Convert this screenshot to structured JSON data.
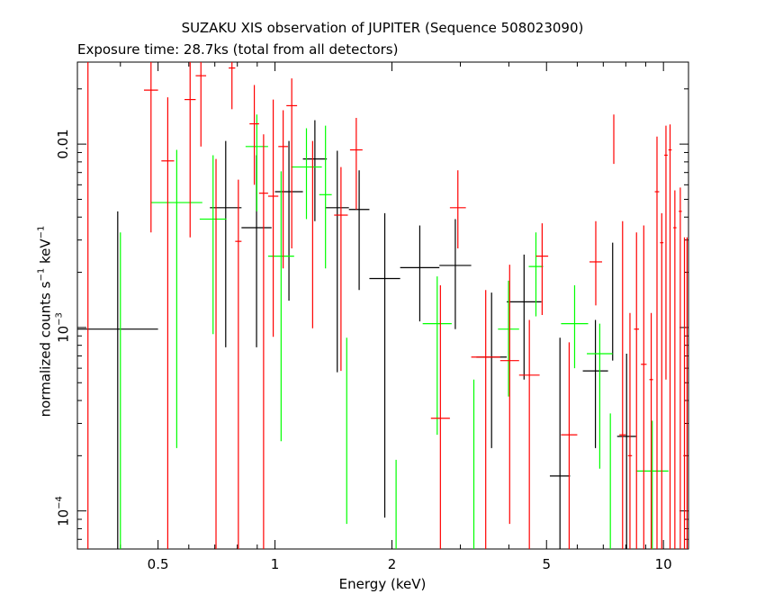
{
  "chart_data": {
    "type": "scatter",
    "title": "SUZAKU XIS observation of JUPITER (Sequence 508023090)",
    "subtitle": "Exposure time: 28.7ks (total from all detectors)",
    "xlabel": "Energy (keV)",
    "ylabel": {
      "prefix": "normalized counts s",
      "exp1": "−1",
      "mid": " keV",
      "exp2": "−1"
    },
    "x_scale": "log",
    "y_scale": "log",
    "xlim": [
      0.31,
      11.6
    ],
    "ylim": [
      6.2e-05,
      0.028
    ],
    "x_ticks": [
      {
        "v": 0.5,
        "label": "0.5"
      },
      {
        "v": 1,
        "label": "1"
      },
      {
        "v": 2,
        "label": "2"
      },
      {
        "v": 5,
        "label": "5"
      },
      {
        "v": 10,
        "label": "10"
      }
    ],
    "y_ticks": [
      {
        "v": 0.01,
        "label": "0.01"
      },
      {
        "v": 0.001,
        "label": "10",
        "exp": "−3"
      },
      {
        "v": 0.0001,
        "label": "10",
        "exp": "−4"
      }
    ],
    "legend": "none",
    "series": [
      {
        "color": "#000000",
        "points": [
          {
            "x0": 0.31,
            "x1": 0.5,
            "y": 0.00098,
            "ylo": 6.2e-05,
            "yhi": 0.0043
          },
          {
            "x0": 0.68,
            "x1": 0.82,
            "y": 0.0045,
            "ylo": 0.00078,
            "yhi": 0.0104
          },
          {
            "x0": 0.82,
            "x1": 0.98,
            "y": 0.0035,
            "ylo": 0.00078,
            "yhi": 0.0087
          },
          {
            "x0": 1.0,
            "x1": 1.18,
            "y": 0.0055,
            "ylo": 0.0014,
            "yhi": 0.0104
          },
          {
            "x0": 1.18,
            "x1": 1.36,
            "y": 0.0083,
            "ylo": 0.0038,
            "yhi": 0.0135
          },
          {
            "x0": 1.35,
            "x1": 1.55,
            "y": 0.0045,
            "ylo": 0.00057,
            "yhi": 0.0092
          },
          {
            "x0": 1.55,
            "x1": 1.75,
            "y": 0.0044,
            "ylo": 0.0016,
            "yhi": 0.0072
          },
          {
            "x0": 1.75,
            "x1": 2.1,
            "y": 0.00185,
            "ylo": 9.2e-05,
            "yhi": 0.0042
          },
          {
            "x0": 2.1,
            "x1": 2.65,
            "y": 0.00212,
            "ylo": 0.00108,
            "yhi": 0.0036
          },
          {
            "x0": 2.65,
            "x1": 3.2,
            "y": 0.00218,
            "ylo": 0.00098,
            "yhi": 0.0039
          },
          {
            "x0": 3.3,
            "x1": 3.95,
            "y": 0.00069,
            "ylo": 0.00022,
            "yhi": 0.00155
          },
          {
            "x0": 3.95,
            "x1": 4.85,
            "y": 0.00138,
            "ylo": 0.00052,
            "yhi": 0.0025
          },
          {
            "x0": 5.1,
            "x1": 5.75,
            "y": 0.000155,
            "ylo": 6.2e-05,
            "yhi": 0.00088
          },
          {
            "x0": 6.2,
            "x1": 7.2,
            "y": 0.00058,
            "ylo": 0.00022,
            "yhi": 0.0011
          },
          {
            "x0": 7.4,
            "x1": 7.4,
            "y": 0.00156,
            "ylo": 0.00066,
            "yhi": 0.0029
          },
          {
            "x0": 7.6,
            "x1": 8.5,
            "y": 0.000255,
            "ylo": 6.2e-05,
            "yhi": 0.00072
          }
        ]
      },
      {
        "color": "#00ff00",
        "points": [
          {
            "x0": 0.4,
            "x1": 0.4,
            "y": 0.00033,
            "ylo": 6.2e-05,
            "yhi": 0.0033
          },
          {
            "x0": 0.48,
            "x1": 0.65,
            "y": 0.0048,
            "ylo": 0.00022,
            "yhi": 0.0093
          },
          {
            "x0": 0.64,
            "x1": 0.75,
            "y": 0.0039,
            "ylo": 0.00092,
            "yhi": 0.0087
          },
          {
            "x0": 0.84,
            "x1": 0.96,
            "y": 0.0097,
            "ylo": 0.0043,
            "yhi": 0.0145
          },
          {
            "x0": 0.96,
            "x1": 1.12,
            "y": 0.00245,
            "ylo": 0.00024,
            "yhi": 0.0071
          },
          {
            "x0": 1.1,
            "x1": 1.32,
            "y": 0.0075,
            "ylo": 0.0039,
            "yhi": 0.0122
          },
          {
            "x0": 1.3,
            "x1": 1.4,
            "y": 0.0053,
            "ylo": 0.0021,
            "yhi": 0.0126
          },
          {
            "x0": 1.53,
            "x1": 1.53,
            "y": 0.0005,
            "ylo": 8.5e-05,
            "yhi": 0.00088
          },
          {
            "x0": 2.05,
            "x1": 2.05,
            "y": 0.00012,
            "ylo": 6.2e-05,
            "yhi": 0.00019
          },
          {
            "x0": 2.4,
            "x1": 2.85,
            "y": 0.00105,
            "ylo": 0.00026,
            "yhi": 0.0019
          },
          {
            "x0": 3.25,
            "x1": 3.25,
            "y": 0.00035,
            "ylo": 6.2e-05,
            "yhi": 0.00052
          },
          {
            "x0": 3.75,
            "x1": 4.25,
            "y": 0.00098,
            "ylo": 0.00042,
            "yhi": 0.0018
          },
          {
            "x0": 4.5,
            "x1": 4.9,
            "y": 0.00215,
            "ylo": 0.00115,
            "yhi": 0.0033
          },
          {
            "x0": 5.45,
            "x1": 6.4,
            "y": 0.00105,
            "ylo": 0.0006,
            "yhi": 0.0017
          },
          {
            "x0": 6.35,
            "x1": 7.4,
            "y": 0.00072,
            "ylo": 0.00017,
            "yhi": 0.00105
          },
          {
            "x0": 7.3,
            "x1": 7.3,
            "y": 0.00022,
            "ylo": 6.2e-05,
            "yhi": 0.00034
          },
          {
            "x0": 8.5,
            "x1": 10.3,
            "y": 0.000165,
            "ylo": 6.2e-05,
            "yhi": 0.00031
          }
        ]
      },
      {
        "color": "#ff0000",
        "points": [
          {
            "x0": 0.33,
            "x1": 0.33,
            "y": 0.01,
            "ylo": 6.2e-05,
            "yhi": 0.028
          },
          {
            "x0": 0.46,
            "x1": 0.5,
            "y": 0.0197,
            "ylo": 0.0033,
            "yhi": 0.028
          },
          {
            "x0": 0.51,
            "x1": 0.55,
            "y": 0.0081,
            "ylo": 6.2e-05,
            "yhi": 0.018
          },
          {
            "x0": 0.585,
            "x1": 0.625,
            "y": 0.0175,
            "ylo": 0.0031,
            "yhi": 0.028
          },
          {
            "x0": 0.625,
            "x1": 0.665,
            "y": 0.0236,
            "ylo": 0.0097,
            "yhi": 0.028
          },
          {
            "x0": 0.705,
            "x1": 0.705,
            "y": 0.0039,
            "ylo": 6.2e-05,
            "yhi": 0.0083
          },
          {
            "x0": 0.76,
            "x1": 0.79,
            "y": 0.026,
            "ylo": 0.0155,
            "yhi": 0.028
          },
          {
            "x0": 0.79,
            "x1": 0.82,
            "y": 0.00295,
            "ylo": 6.2e-05,
            "yhi": 0.0064
          },
          {
            "x0": 0.86,
            "x1": 0.91,
            "y": 0.0129,
            "ylo": 0.006,
            "yhi": 0.021
          },
          {
            "x0": 0.91,
            "x1": 0.96,
            "y": 0.0054,
            "ylo": 6.2e-05,
            "yhi": 0.0113
          },
          {
            "x0": 0.96,
            "x1": 1.02,
            "y": 0.0052,
            "ylo": 0.00089,
            "yhi": 0.0175
          },
          {
            "x0": 1.02,
            "x1": 1.08,
            "y": 0.0097,
            "ylo": 0.0021,
            "yhi": 0.0153
          },
          {
            "x0": 1.07,
            "x1": 1.14,
            "y": 0.0162,
            "ylo": 0.0027,
            "yhi": 0.0228
          },
          {
            "x0": 1.25,
            "x1": 1.25,
            "y": 0.0045,
            "ylo": 0.00099,
            "yhi": 0.0104
          },
          {
            "x0": 1.42,
            "x1": 1.54,
            "y": 0.0041,
            "ylo": 0.00058,
            "yhi": 0.0075
          },
          {
            "x0": 1.56,
            "x1": 1.68,
            "y": 0.0093,
            "ylo": 0.0044,
            "yhi": 0.0139
          },
          {
            "x0": 2.52,
            "x1": 2.82,
            "y": 0.00032,
            "ylo": 6.2e-05,
            "yhi": 0.0017
          },
          {
            "x0": 2.82,
            "x1": 3.1,
            "y": 0.0045,
            "ylo": 0.0027,
            "yhi": 0.0072
          },
          {
            "x0": 3.2,
            "x1": 3.8,
            "y": 0.00069,
            "ylo": 6.2e-05,
            "yhi": 0.0016
          },
          {
            "x0": 3.8,
            "x1": 4.25,
            "y": 0.00066,
            "ylo": 8.5e-05,
            "yhi": 0.0022
          },
          {
            "x0": 4.25,
            "x1": 4.8,
            "y": 0.00055,
            "ylo": 6.2e-05,
            "yhi": 0.0011
          },
          {
            "x0": 4.7,
            "x1": 5.05,
            "y": 0.00245,
            "ylo": 0.00117,
            "yhi": 0.0037
          },
          {
            "x0": 5.45,
            "x1": 6.0,
            "y": 0.00026,
            "ylo": 6.2e-05,
            "yhi": 0.00083
          },
          {
            "x0": 6.45,
            "x1": 6.95,
            "y": 0.00228,
            "ylo": 0.00132,
            "yhi": 0.0038
          },
          {
            "x0": 7.45,
            "x1": 7.45,
            "y": 0.0105,
            "ylo": 0.0078,
            "yhi": 0.0145
          },
          {
            "x0": 7.7,
            "x1": 8.0,
            "y": 0.00026,
            "ylo": 6.2e-05,
            "yhi": 0.0038
          },
          {
            "x0": 8.1,
            "x1": 8.3,
            "y": 0.0002,
            "ylo": 6.2e-05,
            "yhi": 0.0012
          },
          {
            "x0": 8.4,
            "x1": 8.65,
            "y": 0.00098,
            "ylo": 6.2e-05,
            "yhi": 0.0033
          },
          {
            "x0": 8.75,
            "x1": 9.05,
            "y": 0.00063,
            "ylo": 6.2e-05,
            "yhi": 0.0036
          },
          {
            "x0": 9.2,
            "x1": 9.4,
            "y": 0.00052,
            "ylo": 6.2e-05,
            "yhi": 0.0012
          },
          {
            "x0": 9.5,
            "x1": 9.75,
            "y": 0.0055,
            "ylo": 6.2e-05,
            "yhi": 0.011
          },
          {
            "x0": 9.8,
            "x1": 10.0,
            "y": 0.0029,
            "ylo": 6.2e-05,
            "yhi": 0.0042
          },
          {
            "x0": 10.05,
            "x1": 10.25,
            "y": 0.0087,
            "ylo": 0.00052,
            "yhi": 0.0126
          },
          {
            "x0": 10.3,
            "x1": 10.5,
            "y": 0.0093,
            "ylo": 6.2e-05,
            "yhi": 0.0128
          },
          {
            "x0": 10.6,
            "x1": 10.8,
            "y": 0.0035,
            "ylo": 6.2e-05,
            "yhi": 0.0056
          },
          {
            "x0": 10.95,
            "x1": 11.15,
            "y": 0.0043,
            "ylo": 6.2e-05,
            "yhi": 0.0058
          },
          {
            "x0": 11.25,
            "x1": 11.4,
            "y": 0.0002,
            "ylo": 6.2e-05,
            "yhi": 0.0031
          },
          {
            "x0": 11.45,
            "x1": 11.55,
            "y": 0.0001,
            "ylo": 6.2e-05,
            "yhi": 0.0031
          }
        ]
      }
    ]
  }
}
